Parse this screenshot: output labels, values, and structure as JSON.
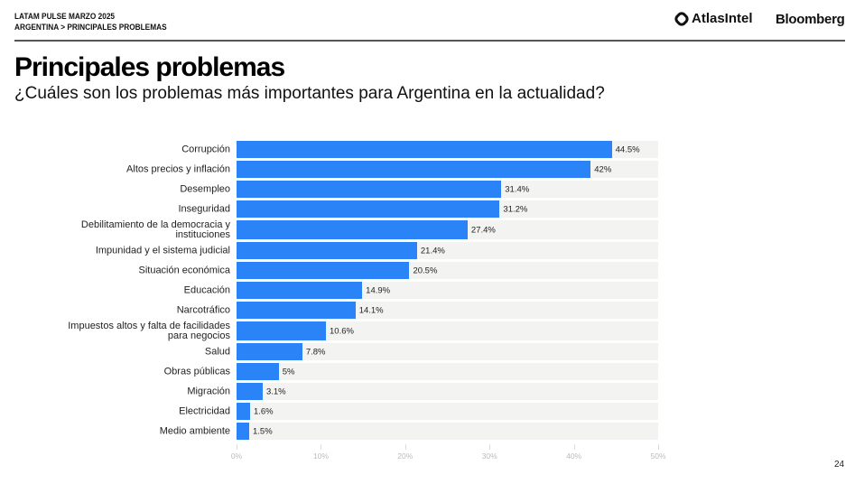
{
  "header": {
    "kicker": "LATAM PULSE MARZO 2025",
    "breadcrumb": "ARGENTINA > PRINCIPALES PROBLEMAS",
    "logo_atlas": "AtlasIntel",
    "logo_bloomberg": "Bloomberg"
  },
  "title": "Principales problemas",
  "subtitle": "¿Cuáles son los problemas más importantes para Argentina en la actualidad?",
  "page_number": "24",
  "chart_data": {
    "type": "bar",
    "orientation": "horizontal",
    "categories": [
      "Corrupción",
      "Altos precios y inflación",
      "Desempleo",
      "Inseguridad",
      "Debilitamiento de la democracia y instituciones",
      "Impunidad y el sistema judicial",
      "Situación económica",
      "Educación",
      "Narcotráfico",
      "Impuestos altos y falta de facilidades para negocios",
      "Salud",
      "Obras públicas",
      "Migración",
      "Electricidad",
      "Medio ambiente"
    ],
    "values": [
      44.5,
      42,
      31.4,
      31.2,
      27.4,
      21.4,
      20.5,
      14.9,
      14.1,
      10.6,
      7.8,
      5,
      3.1,
      1.6,
      1.5
    ],
    "labels": [
      "44.5%",
      "42%",
      "31.4%",
      "31.2%",
      "27.4%",
      "21.4%",
      "20.5%",
      "14.9%",
      "14.1%",
      "10.6%",
      "7.8%",
      "5%",
      "3.1%",
      "1.6%",
      "1.5%"
    ],
    "xlim": [
      0,
      50
    ],
    "xticks": [
      "0%",
      "10%",
      "20%",
      "30%",
      "40%",
      "50%"
    ],
    "bar_color": "#2a84f7",
    "track_color": "#f3f3f1",
    "grid": false
  }
}
